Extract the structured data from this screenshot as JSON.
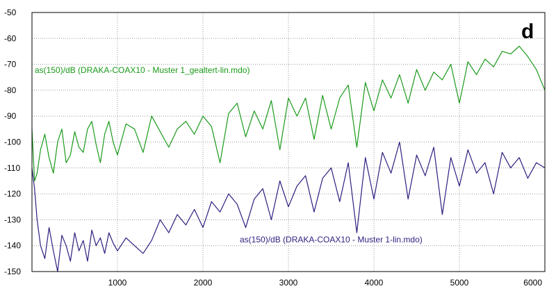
{
  "chart_data": {
    "type": "line",
    "title": "",
    "panel_label": "d",
    "xlabel": "",
    "ylabel": "",
    "xlim": [
      0,
      6000
    ],
    "ylim": [
      -150,
      -50
    ],
    "grid": true,
    "x_ticks": [
      1000,
      2000,
      3000,
      4000,
      5000,
      6000
    ],
    "y_ticks": [
      -50,
      -60,
      -70,
      -80,
      -90,
      -100,
      -110,
      -120,
      -130,
      -140,
      -150
    ],
    "series": [
      {
        "name": "as(150)/dB (DRAKA-COAX10  - Muster 1_gealtert-lin.mdo)",
        "color": "#1a9a1a",
        "x": [
          0,
          30,
          60,
          100,
          150,
          200,
          250,
          300,
          350,
          400,
          450,
          500,
          550,
          600,
          650,
          700,
          750,
          800,
          850,
          900,
          950,
          1000,
          1100,
          1200,
          1300,
          1400,
          1500,
          1600,
          1700,
          1800,
          1900,
          2000,
          2100,
          2200,
          2300,
          2400,
          2500,
          2600,
          2700,
          2800,
          2900,
          3000,
          3100,
          3200,
          3300,
          3400,
          3500,
          3600,
          3700,
          3800,
          3900,
          4000,
          4100,
          4200,
          4300,
          4400,
          4500,
          4600,
          4700,
          4800,
          4900,
          5000,
          5100,
          5200,
          5300,
          5400,
          5500,
          5600,
          5700,
          5800,
          5900,
          6000
        ],
        "y": [
          -95,
          -115,
          -112,
          -103,
          -97,
          -106,
          -112,
          -100,
          -95,
          -108,
          -105,
          -96,
          -102,
          -104,
          -95,
          -92,
          -101,
          -108,
          -97,
          -92,
          -100,
          -105,
          -93,
          -95,
          -104,
          -90,
          -96,
          -102,
          -95,
          -92,
          -97,
          -90,
          -94,
          -108,
          -89,
          -85,
          -98,
          -88,
          -95,
          -84,
          -103,
          -83,
          -90,
          -83,
          -99,
          -82,
          -95,
          -83,
          -78,
          -102,
          -77,
          -88,
          -76,
          -83,
          -74,
          -85,
          -72,
          -80,
          -73,
          -76,
          -70,
          -85,
          -69,
          -74,
          -68,
          -71,
          -65,
          -66,
          -63,
          -67,
          -72,
          -80
        ]
      },
      {
        "name": "as(150)/dB (DRAKA-COAX10  - Muster 1-lin.mdo)",
        "color": "#2b1f80",
        "x": [
          0,
          30,
          60,
          100,
          150,
          200,
          250,
          300,
          350,
          400,
          450,
          500,
          550,
          600,
          650,
          700,
          750,
          800,
          850,
          900,
          950,
          1000,
          1100,
          1200,
          1300,
          1400,
          1500,
          1600,
          1700,
          1800,
          1900,
          2000,
          2100,
          2200,
          2300,
          2400,
          2500,
          2600,
          2700,
          2800,
          2900,
          3000,
          3100,
          3200,
          3300,
          3400,
          3500,
          3600,
          3700,
          3800,
          3900,
          4000,
          4100,
          4200,
          4300,
          4400,
          4500,
          4600,
          4700,
          4800,
          4900,
          5000,
          5100,
          5200,
          5300,
          5400,
          5500,
          5600,
          5700,
          5800,
          5900,
          6000
        ],
        "y": [
          -110,
          -118,
          -130,
          -140,
          -145,
          -133,
          -142,
          -150,
          -136,
          -140,
          -146,
          -135,
          -142,
          -138,
          -146,
          -134,
          -140,
          -137,
          -143,
          -135,
          -139,
          -142,
          -137,
          -140,
          -143,
          -138,
          -130,
          -135,
          -128,
          -132,
          -126,
          -133,
          -123,
          -127,
          -120,
          -124,
          -133,
          -122,
          -118,
          -130,
          -115,
          -125,
          -117,
          -113,
          -127,
          -114,
          -110,
          -123,
          -108,
          -135,
          -106,
          -122,
          -104,
          -112,
          -100,
          -122,
          -105,
          -113,
          -102,
          -128,
          -106,
          -117,
          -103,
          -112,
          -108,
          -120,
          -104,
          -110,
          -106,
          -114,
          -108,
          -110
        ]
      }
    ]
  }
}
